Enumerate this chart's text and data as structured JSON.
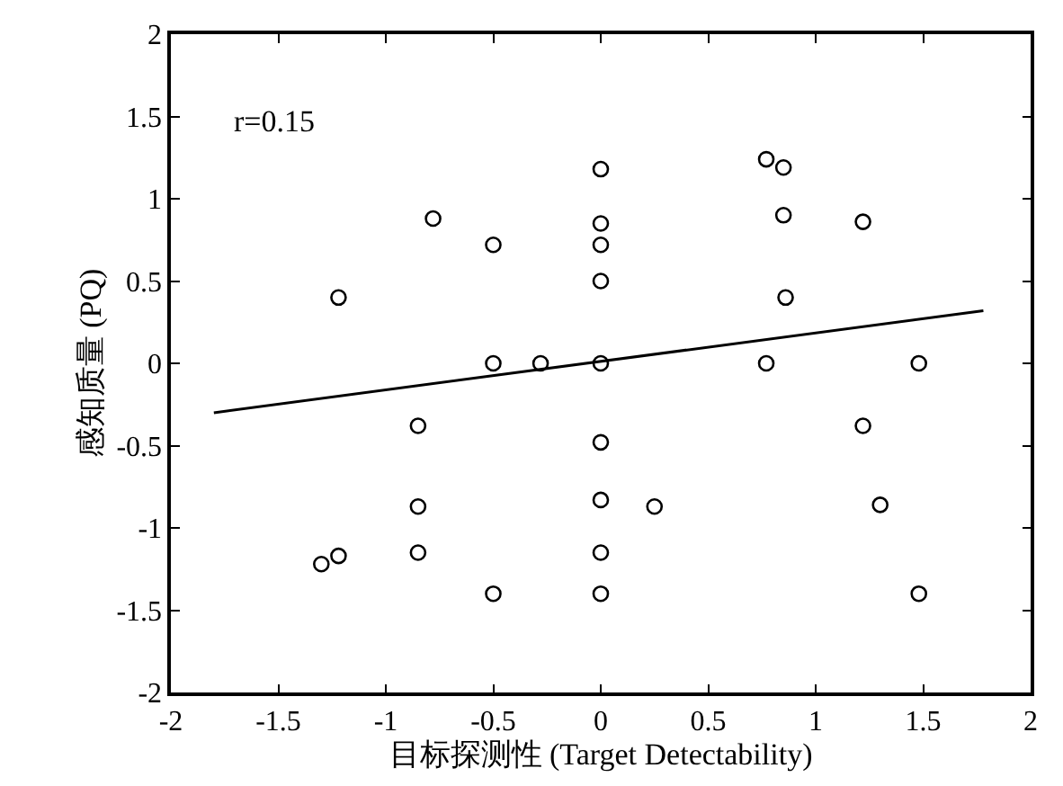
{
  "chart_data": {
    "type": "scatter",
    "xlabel": "目标探测性 (Target Detectability)",
    "ylabel": "感知质量 (PQ)",
    "annotations": [
      "r=0.15"
    ],
    "xlim": [
      -2,
      2
    ],
    "ylim": [
      -2,
      2
    ],
    "xticks": [
      -2,
      -1.5,
      -1,
      -0.5,
      0,
      0.5,
      1,
      1.5,
      2
    ],
    "yticks": [
      -2,
      -1.5,
      -1,
      -0.5,
      0,
      0.5,
      1,
      1.5,
      2
    ],
    "marker": "circle",
    "series": [
      {
        "color": "#000000",
        "x": [
          -1.3,
          -1.22,
          -1.22,
          -0.85,
          -0.85,
          -0.85,
          -0.78,
          -0.5,
          -0.5,
          -0.5,
          -0.28,
          0,
          0,
          0,
          0,
          0,
          0,
          0,
          0,
          0,
          0.25,
          0.77,
          0.85,
          0.85,
          0.86,
          0.77,
          1.22,
          1.22,
          1.3,
          1.48,
          1.48
        ],
        "values": [
          -1.22,
          -1.17,
          0.4,
          -0.38,
          -0.87,
          -1.15,
          0.88,
          0.72,
          0,
          -1.4,
          0,
          1.18,
          0.85,
          0.72,
          0.5,
          0,
          -0.48,
          -0.83,
          -1.15,
          -1.4,
          -0.87,
          1.24,
          1.19,
          0.9,
          0.4,
          0,
          0.86,
          -0.38,
          -0.86,
          0,
          -1.4
        ]
      },
      {
        "type": "line",
        "marker": "none",
        "color": "#000000",
        "x": [
          -1.8,
          1.78
        ],
        "values": [
          -0.3,
          0.32
        ]
      }
    ]
  }
}
